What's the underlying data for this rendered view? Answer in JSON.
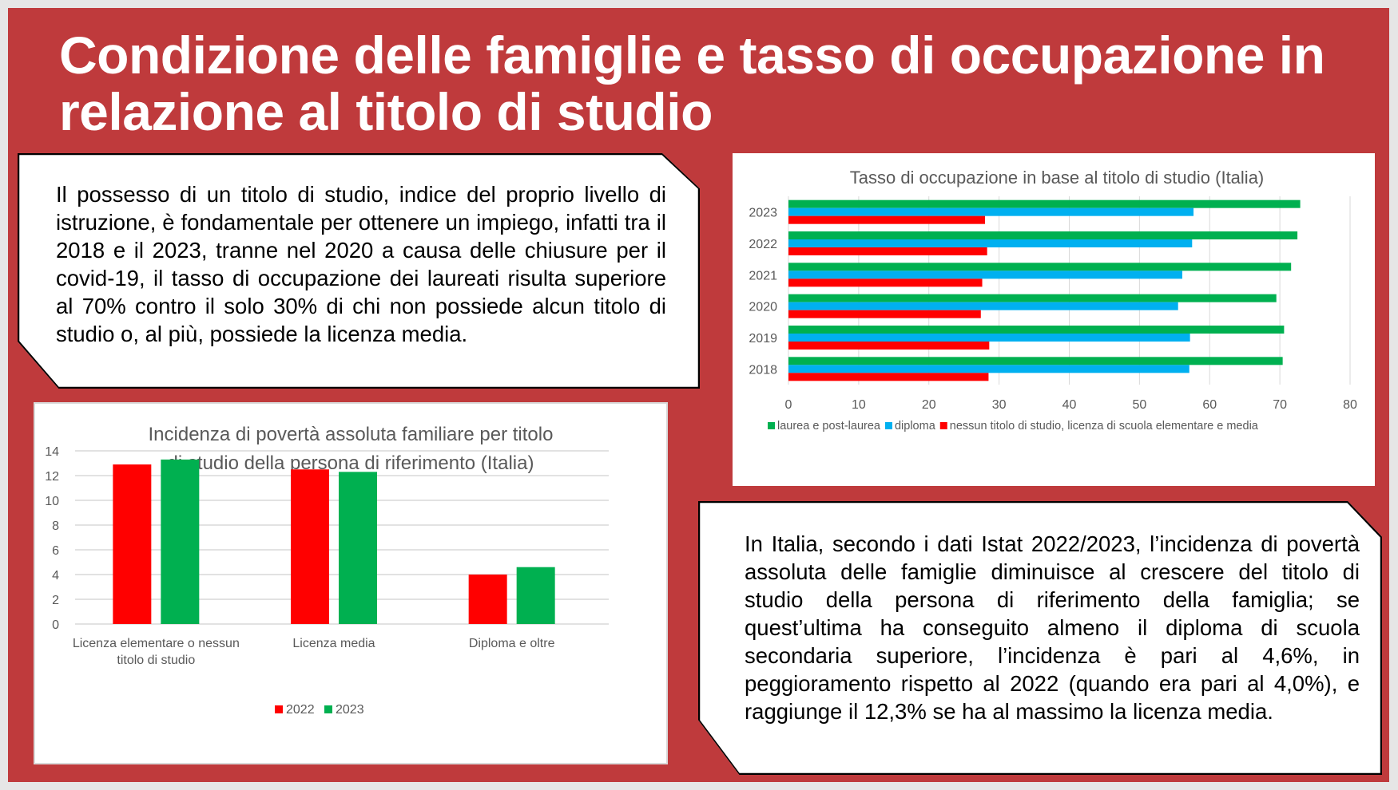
{
  "title": "Condizione delle famiglie e tasso di occupazione in relazione al titolo di studio",
  "box1_text": "Il possesso di un titolo di studio, indice del proprio livello di istruzione, è fondamentale per ottenere un impiego, infatti tra il 2018 e il 2023, tranne nel 2020 a causa delle chiusure per il covid-19, il tasso di occupazione dei laureati risulta superiore al 70% contro il solo 30% di chi non possiede alcun titolo di studio o, al più, possiede la licenza media.",
  "box2_text": "In Italia, secondo i dati Istat 2022/2023, l’incidenza di povertà assoluta delle famiglie diminuisce al crescere del titolo di studio della persona di riferimento della famiglia; se quest’ultima ha conseguito almeno il diploma di scuola secondaria superiore, l’incidenza è pari al 4,6%, in peggioramento rispetto al 2022 (quando era pari al 4,0%), e raggiunge il 12,3% se ha al massimo la licenza media.",
  "colors": {
    "background": "#bf3a3c",
    "green": "#00b050",
    "blue": "#00b0f0",
    "red": "#ff0000"
  },
  "chart_data": [
    {
      "type": "bar",
      "orientation": "horizontal",
      "title": "Tasso di occupazione in base al titolo di studio (Italia)",
      "categories": [
        "2023",
        "2022",
        "2021",
        "2020",
        "2019",
        "2018"
      ],
      "series": [
        {
          "name": "laurea e post-laurea",
          "color": "#00b050",
          "values": [
            72.9,
            72.5,
            71.6,
            69.5,
            70.6,
            70.4
          ]
        },
        {
          "name": "diploma",
          "color": "#00b0f0",
          "values": [
            57.7,
            57.5,
            56.1,
            55.5,
            57.2,
            57.1
          ]
        },
        {
          "name": "nessun titolo di studio, licenza di scuola elementare e media",
          "color": "#ff0000",
          "values": [
            28.0,
            28.3,
            27.6,
            27.4,
            28.6,
            28.5
          ]
        }
      ],
      "xlim": [
        0,
        80
      ],
      "xticks": [
        "0",
        "10",
        "20",
        "30",
        "40",
        "50",
        "60",
        "70",
        "80"
      ],
      "grid": true,
      "legend": "bottom"
    },
    {
      "type": "bar",
      "title": "Incidenza di povertà assoluta familiare per titolo di studio della persona di riferimento (Italia)",
      "categories": [
        [
          "Licenza elementare o nessun",
          "titolo di studio"
        ],
        [
          "Licenza media"
        ],
        [
          "Diploma e oltre"
        ]
      ],
      "series": [
        {
          "name": "2022",
          "color": "#ff0000",
          "values": [
            12.9,
            12.5,
            4.0
          ]
        },
        {
          "name": "2023",
          "color": "#00b050",
          "values": [
            13.3,
            12.3,
            4.6
          ]
        }
      ],
      "ylim": [
        0,
        14
      ],
      "yticks": [
        "0",
        "2",
        "4",
        "6",
        "8",
        "10",
        "12",
        "14"
      ],
      "grid": true,
      "legend": "bottom"
    }
  ]
}
